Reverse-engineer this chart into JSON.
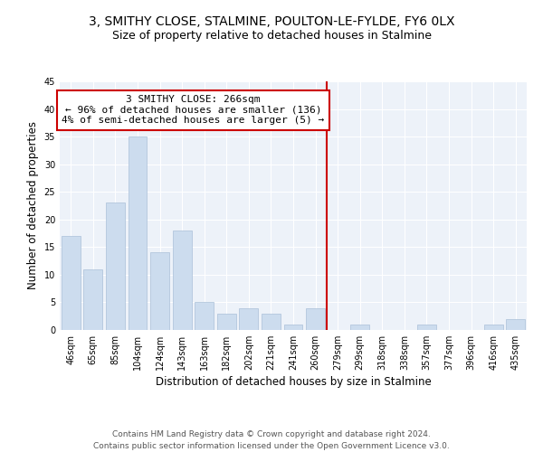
{
  "title": "3, SMITHY CLOSE, STALMINE, POULTON-LE-FYLDE, FY6 0LX",
  "subtitle": "Size of property relative to detached houses in Stalmine",
  "xlabel": "Distribution of detached houses by size in Stalmine",
  "ylabel": "Number of detached properties",
  "categories": [
    "46sqm",
    "65sqm",
    "85sqm",
    "104sqm",
    "124sqm",
    "143sqm",
    "163sqm",
    "182sqm",
    "202sqm",
    "221sqm",
    "241sqm",
    "260sqm",
    "279sqm",
    "299sqm",
    "318sqm",
    "338sqm",
    "357sqm",
    "377sqm",
    "396sqm",
    "416sqm",
    "435sqm"
  ],
  "values": [
    17,
    11,
    23,
    35,
    14,
    18,
    5,
    3,
    4,
    3,
    1,
    4,
    0,
    1,
    0,
    0,
    1,
    0,
    0,
    1,
    2
  ],
  "bar_color": "#ccdcee",
  "bar_edge_color": "#aac0d8",
  "vline_index": 11.5,
  "vline_color": "#cc0000",
  "annotation_line1": "3 SMITHY CLOSE: 266sqm",
  "annotation_line2": "← 96% of detached houses are smaller (136)",
  "annotation_line3": "4% of semi-detached houses are larger (5) →",
  "annotation_box_color": "#ffffff",
  "annotation_box_edge": "#cc0000",
  "ylim": [
    0,
    45
  ],
  "yticks": [
    0,
    5,
    10,
    15,
    20,
    25,
    30,
    35,
    40,
    45
  ],
  "footer_line1": "Contains HM Land Registry data © Crown copyright and database right 2024.",
  "footer_line2": "Contains public sector information licensed under the Open Government Licence v3.0.",
  "bg_color": "#ffffff",
  "plot_bg_color": "#edf2f9",
  "title_fontsize": 10,
  "subtitle_fontsize": 9,
  "axis_label_fontsize": 8.5,
  "tick_fontsize": 7,
  "footer_fontsize": 6.5,
  "annotation_fontsize": 8
}
